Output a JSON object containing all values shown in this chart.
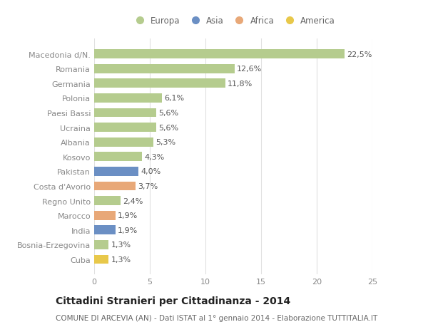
{
  "categories": [
    "Cuba",
    "Bosnia-Erzegovina",
    "India",
    "Marocco",
    "Regno Unito",
    "Costa d'Avorio",
    "Pakistan",
    "Kosovo",
    "Albania",
    "Ucraina",
    "Paesi Bassi",
    "Polonia",
    "Germania",
    "Romania",
    "Macedonia d/N."
  ],
  "values": [
    1.3,
    1.3,
    1.9,
    1.9,
    2.4,
    3.7,
    4.0,
    4.3,
    5.3,
    5.6,
    5.6,
    6.1,
    11.8,
    12.6,
    22.5
  ],
  "labels": [
    "1,3%",
    "1,3%",
    "1,9%",
    "1,9%",
    "2,4%",
    "3,7%",
    "4,0%",
    "4,3%",
    "5,3%",
    "5,6%",
    "5,6%",
    "6,1%",
    "11,8%",
    "12,6%",
    "22,5%"
  ],
  "colors": [
    "#e8c84a",
    "#b5cc8e",
    "#6b8fc4",
    "#e8a878",
    "#b5cc8e",
    "#e8a878",
    "#6b8fc4",
    "#b5cc8e",
    "#b5cc8e",
    "#b5cc8e",
    "#b5cc8e",
    "#b5cc8e",
    "#b5cc8e",
    "#b5cc8e",
    "#b5cc8e"
  ],
  "legend_labels": [
    "Europa",
    "Asia",
    "Africa",
    "America"
  ],
  "legend_colors": [
    "#b5cc8e",
    "#6b8fc4",
    "#e8a878",
    "#e8c84a"
  ],
  "title": "Cittadini Stranieri per Cittadinanza - 2014",
  "subtitle": "COMUNE DI ARCEVIA (AN) - Dati ISTAT al 1° gennaio 2014 - Elaborazione TUTTITALIA.IT",
  "xlim": [
    0,
    25
  ],
  "xticks": [
    0,
    5,
    10,
    15,
    20,
    25
  ],
  "bg_color": "#ffffff",
  "grid_color": "#e0e0e0",
  "bar_height": 0.62,
  "title_fontsize": 10,
  "subtitle_fontsize": 7.5,
  "label_fontsize": 8,
  "tick_fontsize": 8
}
